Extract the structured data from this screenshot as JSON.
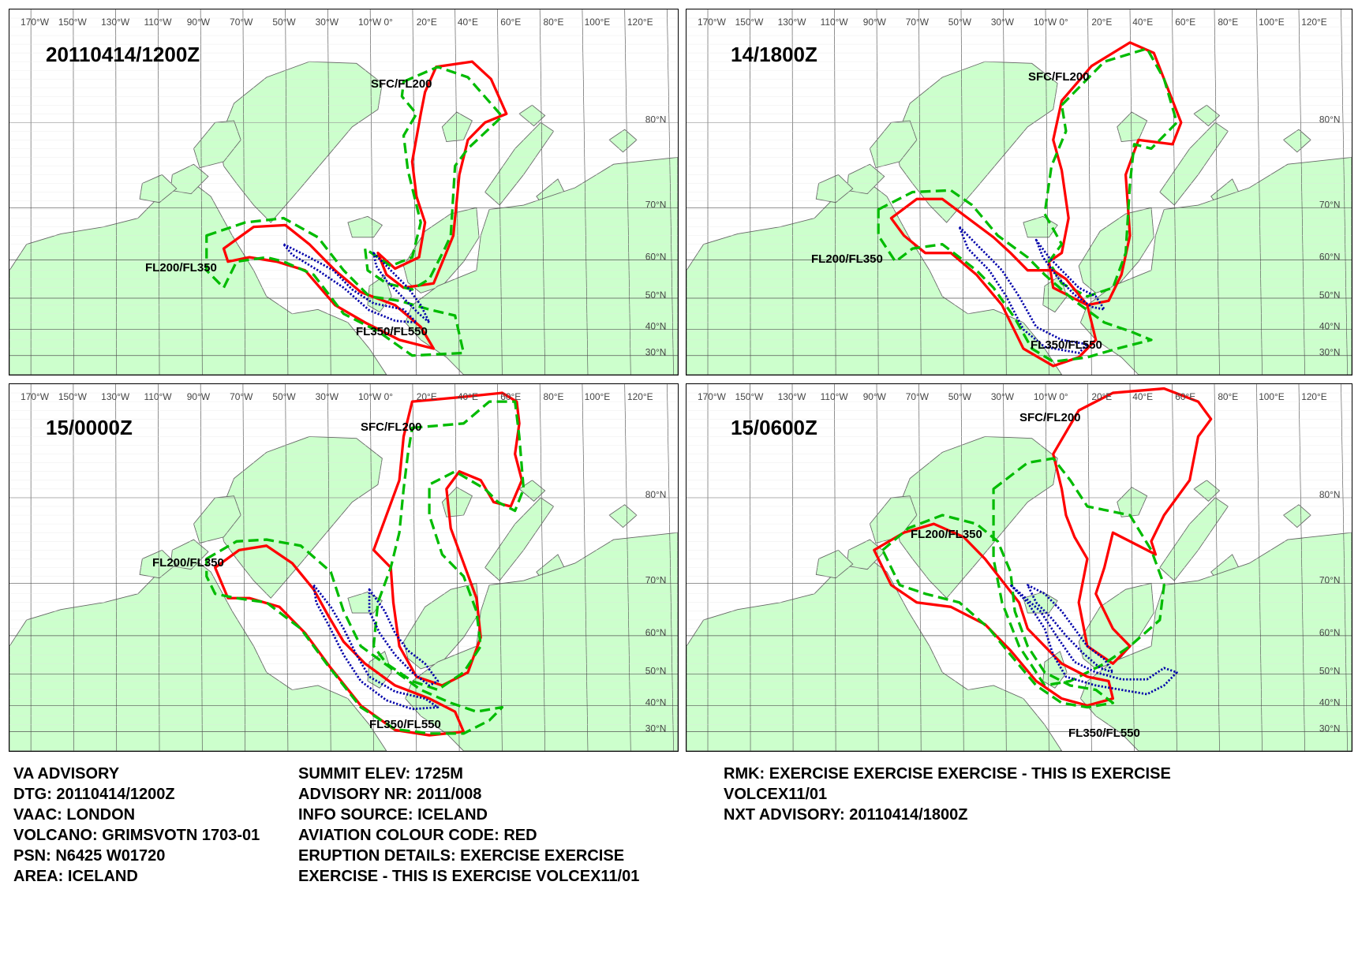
{
  "panels": [
    {
      "id": "p1",
      "valid_time": "20110414/1200Z",
      "layers": [
        {
          "name": "SFC/FL200",
          "color": "#00bb00",
          "style": "dashed"
        },
        {
          "name": "FL200/FL350",
          "color": "#ff0000",
          "style": "solid"
        },
        {
          "name": "FL350/FL550",
          "color": "#0000aa",
          "style": "dotted"
        }
      ]
    },
    {
      "id": "p2",
      "valid_time": "14/1800Z",
      "layers": [
        {
          "name": "SFC/FL200",
          "color": "#00bb00",
          "style": "dashed"
        },
        {
          "name": "FL200/FL350",
          "color": "#ff0000",
          "style": "solid"
        },
        {
          "name": "FL350/FL550",
          "color": "#0000aa",
          "style": "dotted"
        }
      ]
    },
    {
      "id": "p3",
      "valid_time": "15/0000Z",
      "layers": [
        {
          "name": "SFC/FL200",
          "color": "#00bb00",
          "style": "dashed"
        },
        {
          "name": "FL200/FL350",
          "color": "#ff0000",
          "style": "solid"
        },
        {
          "name": "FL350/FL550",
          "color": "#0000aa",
          "style": "dotted"
        }
      ]
    },
    {
      "id": "p4",
      "valid_time": "15/0600Z",
      "layers": [
        {
          "name": "SFC/FL200",
          "color": "#00bb00",
          "style": "dashed"
        },
        {
          "name": "FL200/FL350",
          "color": "#ff0000",
          "style": "solid"
        },
        {
          "name": "FL350/FL550",
          "color": "#0000aa",
          "style": "dotted"
        }
      ]
    }
  ],
  "map": {
    "land_color": "#ccffcc",
    "coast_color": "#666666",
    "grid_color": "#555555",
    "lon_labels": [
      "170°W",
      "150°W",
      "130°W",
      "110°W",
      "90°W",
      "70°W",
      "50°W",
      "30°W",
      "10°W 0°",
      "20°E",
      "40°E",
      "60°E",
      "80°E",
      "100°E",
      "120°E"
    ],
    "lat_labels": [
      "80°N",
      "70°N",
      "60°N",
      "50°N",
      "40°N",
      "30°N"
    ]
  },
  "advisory": {
    "col1": [
      "VA ADVISORY",
      "DTG:  20110414/1200Z",
      "VAAC:  LONDON",
      "VOLCANO:  GRIMSVOTN 1703-01",
      "PSN:  N6425 W01720",
      "AREA:  ICELAND"
    ],
    "col2": [
      "SUMMIT ELEV:  1725M",
      "ADVISORY NR:  2011/008",
      "INFO SOURCE:  ICELAND",
      "AVIATION COLOUR CODE:  RED",
      "ERUPTION DETAILS:  EXERCISE EXERCISE",
      "EXERCISE - THIS IS EXERCISE VOLCEX11/01"
    ],
    "col3": [
      "RMK:  EXERCISE EXERCISE EXERCISE - THIS IS EXERCISE",
      "VOLCEX11/01",
      "NXT ADVISORY:  20110414/1800Z"
    ]
  }
}
